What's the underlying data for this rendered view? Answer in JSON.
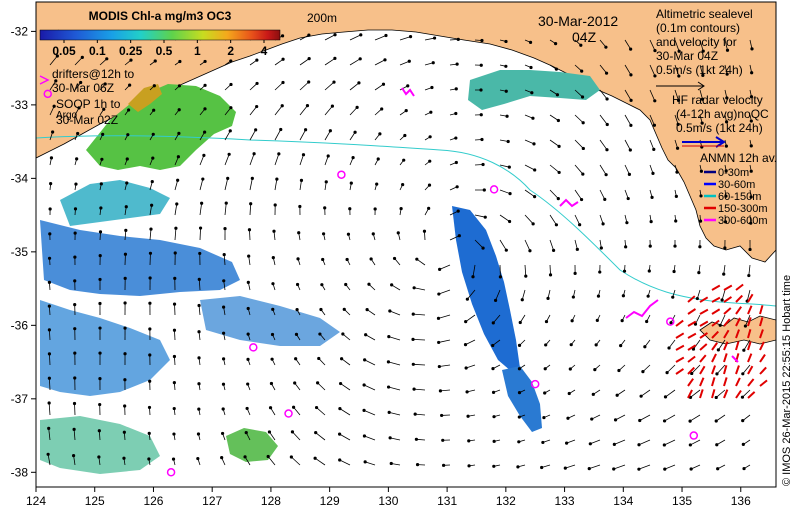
{
  "map": {
    "colorbar": {
      "title": "MODIS Chl-a mg/m3 OC3",
      "ticks": [
        "0.05",
        "0.1",
        "0.25",
        "0.5",
        "1",
        "2",
        "4"
      ],
      "colors": [
        "#1a1aa8",
        "#1f5ad6",
        "#19a0e6",
        "#22d0c8",
        "#5ed24c",
        "#c8dc20",
        "#f4a81c",
        "#e8541a",
        "#c81818",
        "#8a0f0f"
      ]
    },
    "depth_contour_label": "200m",
    "date": "30-Mar-2012",
    "hour": "04Z",
    "altimetry_legend": [
      "Altimetric sealevel",
      "(0.1m contours)",
      "and velocity for",
      "30-Mar 04Z",
      "0.5m/s (1kt 24h)"
    ],
    "hf_radar_legend": [
      "HF radar velocity",
      "(4-12h avg)noQC",
      "0.5m/s (1kt 24h)"
    ],
    "anmn_legend": {
      "title": "ANMN 12h av.",
      "items": [
        {
          "label": "0-30m",
          "color": "#000080"
        },
        {
          "label": "30-60m",
          "color": "#0000ff"
        },
        {
          "label": "60-150m",
          "color": "#00c0c0"
        },
        {
          "label": "150-300m",
          "color": "#e00000"
        },
        {
          "label": "300-600m",
          "color": "#ff00ff"
        }
      ]
    },
    "drifters_label": [
      "drifters@12h to",
      "30-Mar 06Z"
    ],
    "soop_label": [
      "SOOP 1h to",
      "Argo",
      "30-Mar 02Z"
    ],
    "credit": "© IMOS 26-Mar-2015 22:55:15 Hobart time",
    "lon_ticks": [
      "124",
      "125",
      "126",
      "127",
      "128",
      "129",
      "130",
      "131",
      "132",
      "133",
      "134",
      "135",
      "136"
    ],
    "lat_ticks": [
      "-32",
      "-33",
      "-34",
      "-35",
      "-36",
      "-37",
      "-38"
    ],
    "lon_range": [
      124,
      136.6
    ],
    "lat_range": [
      -38.2,
      -31.6
    ],
    "land_color": "#f7c08a",
    "argo_floats": [
      {
        "lon": 129.2,
        "lat": -33.95
      },
      {
        "lon": 131.8,
        "lat": -34.15
      },
      {
        "lon": 127.7,
        "lat": -36.3
      },
      {
        "lon": 128.3,
        "lat": -37.2
      },
      {
        "lon": 132.5,
        "lat": -36.8
      },
      {
        "lon": 134.8,
        "lat": -35.95
      },
      {
        "lon": 126.3,
        "lat": -38.0
      },
      {
        "lon": 135.2,
        "lat": -37.5
      },
      {
        "lon": 124.2,
        "lat": -32.85
      }
    ]
  }
}
